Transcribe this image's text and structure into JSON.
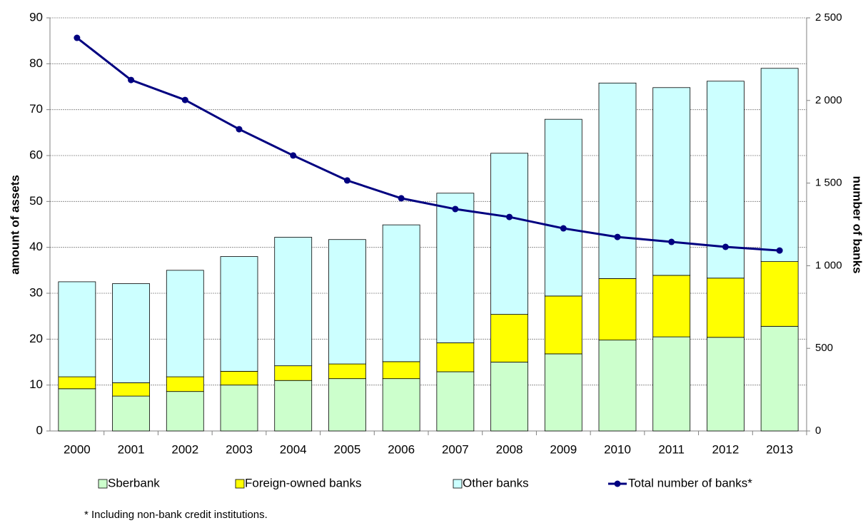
{
  "chart_data": {
    "type": "bar",
    "stacked": true,
    "categories": [
      "2000",
      "2001",
      "2002",
      "2003",
      "2004",
      "2005",
      "2006",
      "2007",
      "2008",
      "2009",
      "2010",
      "2011",
      "2012",
      "2013"
    ],
    "series": [
      {
        "name": "Sberbank",
        "color": "#ccffcc",
        "values": [
          9.2,
          7.6,
          8.6,
          10.0,
          11.0,
          11.4,
          11.4,
          12.9,
          15.0,
          16.8,
          19.8,
          20.5,
          20.4,
          22.8
        ]
      },
      {
        "name": "Foreign-owned banks",
        "color": "#ffff00",
        "values": [
          2.6,
          2.9,
          3.2,
          3.0,
          3.2,
          3.2,
          3.7,
          6.3,
          10.4,
          12.6,
          13.4,
          13.4,
          12.9,
          14.1
        ]
      },
      {
        "name": "Other banks",
        "color": "#ccffff",
        "values": [
          20.7,
          21.6,
          23.2,
          25.0,
          28.0,
          27.1,
          29.8,
          32.6,
          35.1,
          38.5,
          42.6,
          40.9,
          42.9,
          42.1
        ]
      },
      {
        "name": "Total number of banks*",
        "color": "#000080",
        "type": "line",
        "axis": "y2",
        "values": [
          2379,
          2124,
          2003,
          1826,
          1667,
          1516,
          1408,
          1343,
          1295,
          1226,
          1174,
          1144,
          1114,
          1092
        ]
      }
    ],
    "ylabel": "amount of assets",
    "y2label": "number of banks",
    "ylim": [
      0,
      90
    ],
    "yticks": [
      0,
      10,
      20,
      30,
      40,
      50,
      60,
      70,
      80,
      90
    ],
    "y2lim": [
      0,
      2500
    ],
    "y2ticks": [
      0,
      500,
      {
        "value": 1000,
        "label": "1 000"
      },
      {
        "value": 1500,
        "label": "1 500"
      },
      {
        "value": 2000,
        "label": "2 000"
      },
      {
        "value": 2500,
        "label": "2 500"
      }
    ],
    "grid": true,
    "legend": "bottom",
    "note": "* Including  non-bank credit institutions."
  }
}
